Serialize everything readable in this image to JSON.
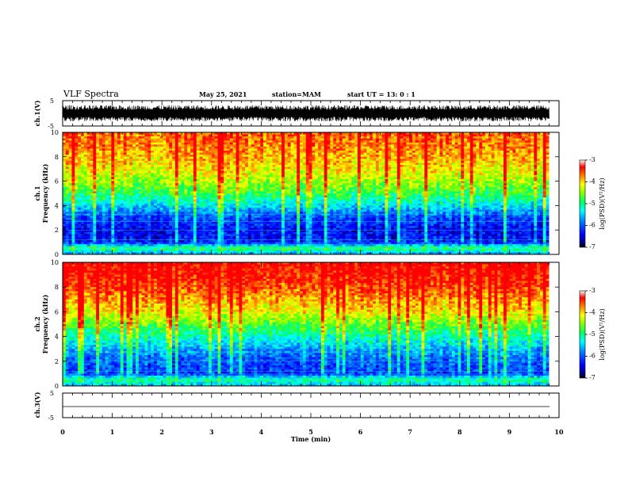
{
  "header": {
    "title": "VLF Spectra",
    "date": "May 25, 2021",
    "station": "station=MAM",
    "start": "start  UT =   13: 0  : 1"
  },
  "colors": {
    "colormap": [
      "#000080",
      "#0000ff",
      "#0080ff",
      "#00ffff",
      "#00ff80",
      "#80ff00",
      "#ffff00",
      "#ff8000",
      "#ff0000",
      "#800000"
    ]
  },
  "chart_data": [
    {
      "type": "line",
      "panel": "ch1-waveform",
      "ylabel": "ch.1(V)",
      "ylim": [
        -5,
        5
      ],
      "yticks": [
        "5",
        "-5"
      ],
      "xlim": [
        0,
        10
      ],
      "description_of_signal": "noisy waveform between about -3 and +3 V"
    },
    {
      "type": "heatmap",
      "panel": "ch1-spectrogram",
      "title": "ch.1",
      "ylabel": "Frequency (kHz)",
      "ylim": [
        0,
        10
      ],
      "yticks": [
        "0",
        "2",
        "4",
        "6",
        "8",
        "10"
      ],
      "xlim": [
        0,
        9.8
      ],
      "colorbar": {
        "label": "log(PSD)(V²/Hz)",
        "range": [
          -7,
          -3
        ],
        "ticks": [
          "-3",
          "-4",
          "-5",
          "-6",
          "-7"
        ]
      },
      "profile_log_psd_by_freq_khz": {
        "freq": [
          0,
          0.5,
          1,
          2,
          3,
          4,
          5,
          6,
          7,
          8,
          9,
          10
        ],
        "log_psd": [
          -6.0,
          -5.0,
          -6.5,
          -6.6,
          -6.3,
          -5.6,
          -5.0,
          -4.6,
          -4.3,
          -4.1,
          -3.9,
          -3.8
        ]
      }
    },
    {
      "type": "heatmap",
      "panel": "ch2-spectrogram",
      "title": "ch.2",
      "ylabel": "Frequency (kHz)",
      "ylim": [
        0,
        10
      ],
      "yticks": [
        "0",
        "2",
        "4",
        "6",
        "8",
        "10"
      ],
      "xlim": [
        0,
        9.8
      ],
      "colorbar": {
        "label": "log(PSD)(V²/Hz)",
        "range": [
          -7,
          -3
        ],
        "ticks": [
          "-3",
          "-4",
          "-5",
          "-6",
          "-7"
        ]
      },
      "profile_log_psd_by_freq_khz": {
        "freq": [
          0,
          0.5,
          1,
          2,
          3,
          4,
          5,
          6,
          7,
          8,
          9,
          10
        ],
        "log_psd": [
          -5.8,
          -5.2,
          -6.3,
          -6.2,
          -5.8,
          -5.3,
          -4.8,
          -4.3,
          -4.0,
          -3.7,
          -3.5,
          -3.4
        ]
      }
    },
    {
      "type": "line",
      "panel": "ch3-waveform",
      "ylabel": "ch.3(V)",
      "ylim": [
        -5,
        5
      ],
      "yticks": [
        "5",
        "-5"
      ],
      "xlim": [
        0,
        10
      ],
      "description_of_signal": "flat line near -2.2 V"
    }
  ],
  "xaxis": {
    "label": "Time (min)",
    "ticks": [
      "0",
      "1",
      "2",
      "3",
      "4",
      "5",
      "6",
      "7",
      "8",
      "9",
      "10"
    ]
  }
}
